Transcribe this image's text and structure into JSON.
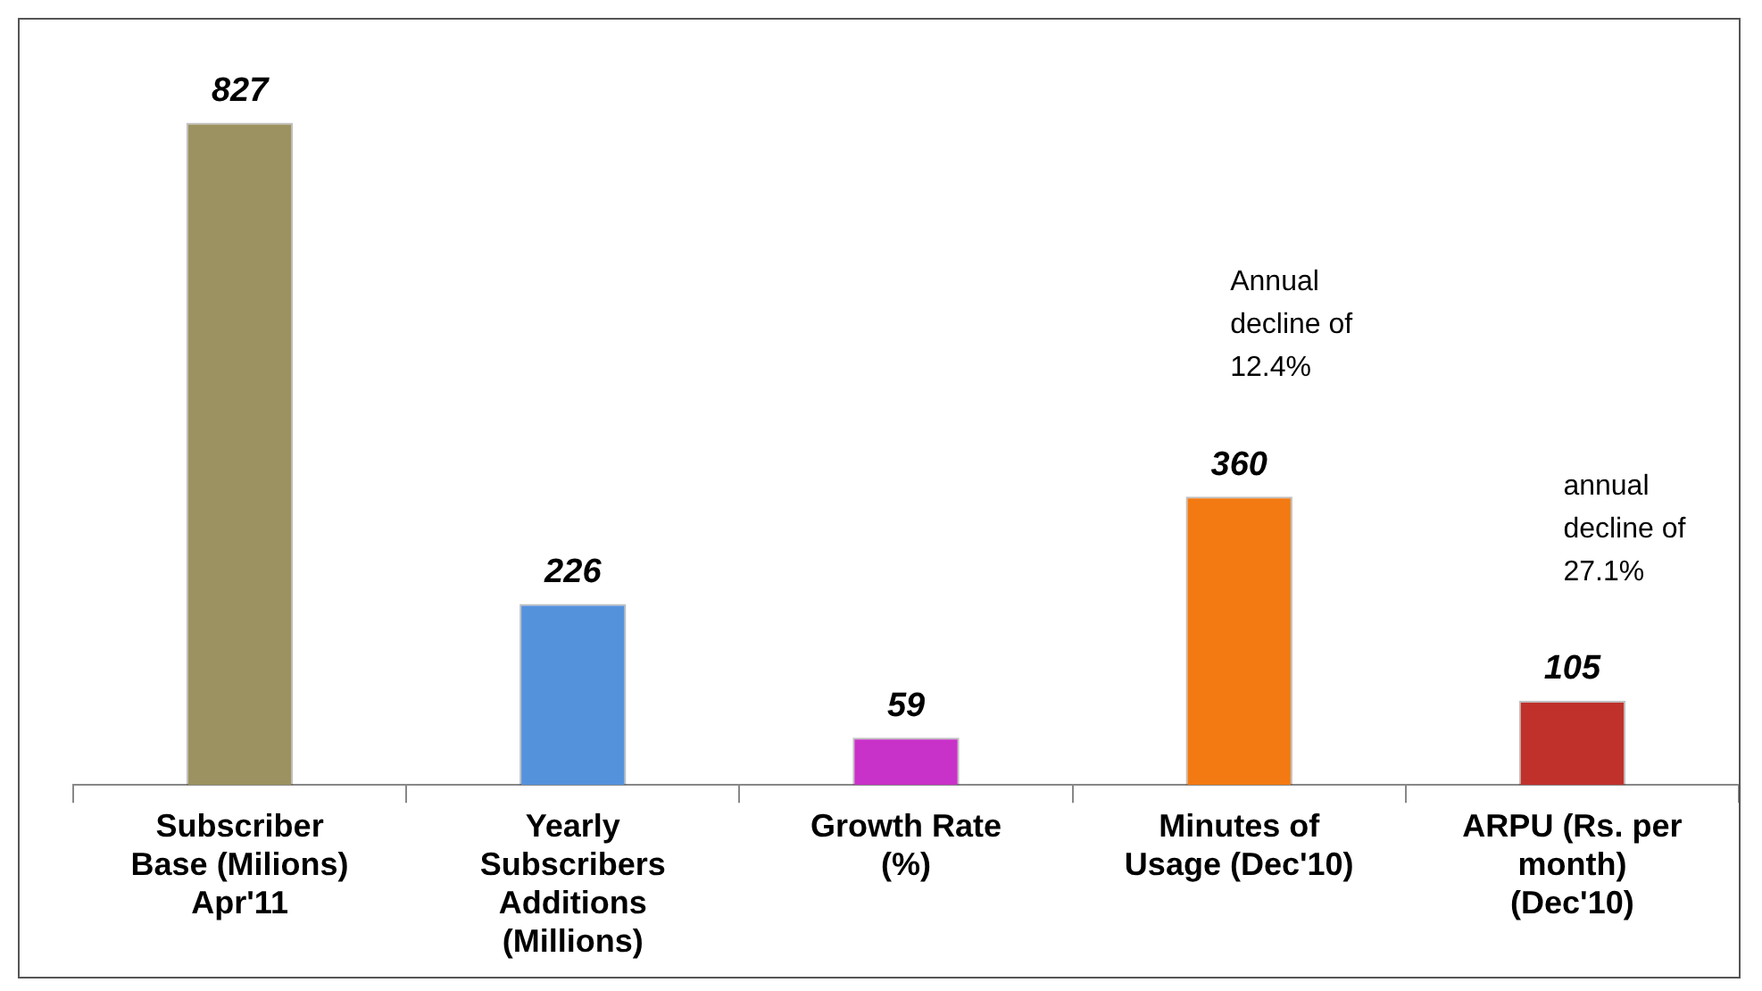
{
  "chart_data": {
    "type": "bar",
    "categories": [
      "Subscriber\nBase (Milions)\nApr'11",
      "Yearly\nSubscribers\nAdditions\n(Millions)",
      "Growth Rate\n(%)",
      "Minutes of\nUsage (Dec'10)",
      "ARPU (Rs. per\nmonth)\n(Dec'10)"
    ],
    "values": [
      827,
      226,
      59,
      360,
      105
    ],
    "colors": [
      "#9c9160",
      "#5592dc",
      "#c832c8",
      "#f37a12",
      "#c0312c"
    ],
    "data_labels": true,
    "annotations": [
      "Annual\ndecline of\n12.4%",
      "annual\ndecline of\n27.1%"
    ]
  }
}
